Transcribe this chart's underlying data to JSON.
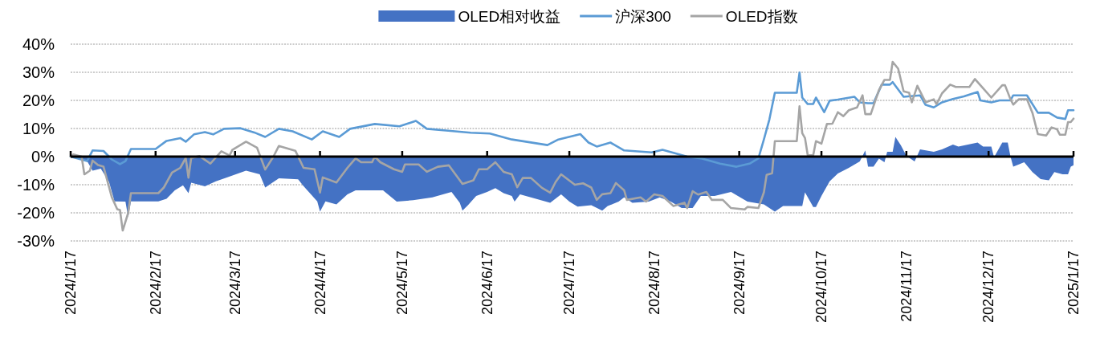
{
  "chart_data": {
    "type": "line",
    "xlim": [
      "2024-01-17",
      "2025-01-17"
    ],
    "xticks": [
      {
        "value": "2024-01-17",
        "label": "2024/1/17"
      },
      {
        "value": "2024-02-17",
        "label": "2024/2/17"
      },
      {
        "value": "2024-03-17",
        "label": "2024/3/17"
      },
      {
        "value": "2024-04-17",
        "label": "2024/4/17"
      },
      {
        "value": "2024-05-17",
        "label": "2024/5/17"
      },
      {
        "value": "2024-06-17",
        "label": "2024/6/17"
      },
      {
        "value": "2024-07-17",
        "label": "2024/7/17"
      },
      {
        "value": "2024-08-17",
        "label": "2024/8/17"
      },
      {
        "value": "2024-09-17",
        "label": "2024/9/17"
      },
      {
        "value": "2024-10-17",
        "label": "2024/10/17"
      },
      {
        "value": "2024-11-17",
        "label": "2024/11/17"
      },
      {
        "value": "2024-12-17",
        "label": "2024/12/17"
      },
      {
        "value": "2025-01-17",
        "label": "2025/1/17"
      }
    ],
    "ylim": [
      -30,
      40
    ],
    "yticks": [
      {
        "value": -30,
        "label": "-30%"
      },
      {
        "value": -20,
        "label": "-20%"
      },
      {
        "value": -10,
        "label": "-10%"
      },
      {
        "value": 0,
        "label": "0%"
      },
      {
        "value": 10,
        "label": "10%"
      },
      {
        "value": 20,
        "label": "20%"
      },
      {
        "value": 30,
        "label": "30%"
      },
      {
        "value": 40,
        "label": "40%"
      }
    ],
    "grid": "y",
    "legend": "top",
    "series": [
      {
        "name": "OLED相对收益",
        "type": "area",
        "color": "#4472c4",
        "x": [
          "2024-01-17",
          "2024-01-23",
          "2024-01-25",
          "2024-01-28",
          "2024-01-31",
          "2024-02-02",
          "2024-02-06",
          "2024-02-07",
          "2024-02-08",
          "2024-02-18",
          "2024-02-21",
          "2024-02-24",
          "2024-02-27",
          "2024-02-29",
          "2024-03-01",
          "2024-03-06",
          "2024-03-10",
          "2024-03-14",
          "2024-03-21",
          "2024-03-26",
          "2024-03-28",
          "2024-04-02",
          "2024-04-09",
          "2024-04-11",
          "2024-04-16",
          "2024-04-17",
          "2024-04-19",
          "2024-04-23",
          "2024-04-27",
          "2024-04-30",
          "2024-05-10",
          "2024-05-15",
          "2024-05-21",
          "2024-05-28",
          "2024-06-04",
          "2024-06-07",
          "2024-06-08",
          "2024-06-10",
          "2024-06-13",
          "2024-06-17",
          "2024-06-20",
          "2024-06-23",
          "2024-06-26",
          "2024-06-27",
          "2024-06-29",
          "2024-07-04",
          "2024-07-10",
          "2024-07-14",
          "2024-07-17",
          "2024-07-20",
          "2024-07-25",
          "2024-07-29",
          "2024-07-31",
          "2024-08-04",
          "2024-08-06",
          "2024-08-09",
          "2024-08-15",
          "2024-08-19",
          "2024-08-23",
          "2024-08-27",
          "2024-08-31",
          "2024-09-03",
          "2024-09-08",
          "2024-09-14",
          "2024-09-20",
          "2024-09-26",
          "2024-09-30",
          "2024-10-03",
          "2024-10-10",
          "2024-10-11",
          "2024-10-14",
          "2024-10-15",
          "2024-10-17",
          "2024-10-20",
          "2024-10-23",
          "2024-10-27",
          "2024-10-31",
          "2024-11-02",
          "2024-11-03",
          "2024-11-05",
          "2024-11-07",
          "2024-11-09",
          "2024-11-10",
          "2024-11-12",
          "2024-11-13",
          "2024-11-15",
          "2024-11-17",
          "2024-11-20",
          "2024-11-22",
          "2024-11-27",
          "2024-11-30",
          "2024-12-04",
          "2024-12-06",
          "2024-12-13",
          "2024-12-15",
          "2024-12-18",
          "2024-12-19",
          "2024-12-22",
          "2024-12-24",
          "2024-12-25",
          "2024-12-26",
          "2024-12-30",
          "2025-01-02",
          "2025-01-05",
          "2025-01-08",
          "2025-01-10",
          "2025-01-13",
          "2025-01-15",
          "2025-01-16",
          "2025-01-17"
        ],
        "values": [
          0,
          -1.6,
          -5,
          -4.3,
          -9,
          -15.9,
          -16,
          -21.6,
          -15.9,
          -15.9,
          -15,
          -12,
          -10.2,
          -13,
          -9.3,
          -10.6,
          -8.8,
          -7.4,
          -5,
          -6.3,
          -11,
          -7.7,
          -8.1,
          -10.5,
          -15.9,
          -19.6,
          -15.9,
          -17,
          -13.4,
          -12,
          -12,
          -16,
          -15.5,
          -14.5,
          -12.6,
          -16.4,
          -19.2,
          -17.3,
          -14,
          -12.6,
          -11.2,
          -13,
          -14,
          -16,
          -13.4,
          -14.8,
          -16.4,
          -13.4,
          -16,
          -17.8,
          -17.3,
          -19.2,
          -17.6,
          -16,
          -14.5,
          -16.4,
          -16,
          -14.5,
          -16,
          -18.3,
          -18.3,
          -14,
          -14,
          -12.6,
          -16,
          -17,
          -19.6,
          -17.6,
          -17.6,
          -12.7,
          -17.9,
          -17.9,
          -14,
          -8.8,
          -6,
          -4,
          -1.7,
          2.2,
          -3.6,
          -3.6,
          -0.7,
          -2,
          1.7,
          1.7,
          7,
          4,
          0.3,
          -1.7,
          2.6,
          1.7,
          2.6,
          4.3,
          3.6,
          5,
          3.6,
          3.6,
          -0.2,
          5,
          5,
          0,
          -3.6,
          -2,
          -5.5,
          -8,
          -8.4,
          -5.5,
          -6.3,
          -6.3,
          -3.6,
          -3.1
        ]
      },
      {
        "name": "沪深300",
        "color": "#5b9bd5",
        "x": [
          "2024-01-17",
          "2024-01-23",
          "2024-01-25",
          "2024-01-29",
          "2024-02-01",
          "2024-02-04",
          "2024-02-06",
          "2024-02-08",
          "2024-02-17",
          "2024-02-21",
          "2024-02-26",
          "2024-02-28",
          "2024-03-02",
          "2024-03-06",
          "2024-03-09",
          "2024-03-13",
          "2024-03-19",
          "2024-03-24",
          "2024-03-28",
          "2024-04-02",
          "2024-04-07",
          "2024-04-14",
          "2024-04-18",
          "2024-04-24",
          "2024-04-28",
          "2024-05-07",
          "2024-05-16",
          "2024-05-22",
          "2024-05-26",
          "2024-06-02",
          "2024-06-11",
          "2024-06-18",
          "2024-06-26",
          "2024-07-09",
          "2024-07-13",
          "2024-07-21",
          "2024-07-24",
          "2024-07-27",
          "2024-08-01",
          "2024-08-06",
          "2024-08-16",
          "2024-08-20",
          "2024-08-29",
          "2024-09-03",
          "2024-09-10",
          "2024-09-16",
          "2024-09-21",
          "2024-09-24",
          "2024-09-26",
          "2024-09-28",
          "2024-09-30",
          "2024-10-08",
          "2024-10-09",
          "2024-10-10",
          "2024-10-12",
          "2024-10-14",
          "2024-10-15",
          "2024-10-18",
          "2024-10-20",
          "2024-10-23",
          "2024-10-29",
          "2024-10-31",
          "2024-11-03",
          "2024-11-05",
          "2024-11-08",
          "2024-11-11",
          "2024-11-12",
          "2024-11-16",
          "2024-11-22",
          "2024-11-24",
          "2024-11-27",
          "2024-11-30",
          "2024-12-04",
          "2024-12-08",
          "2024-12-13",
          "2024-12-14",
          "2024-12-18",
          "2024-12-21",
          "2024-12-25",
          "2024-12-26",
          "2024-12-31",
          "2025-01-04",
          "2025-01-08",
          "2025-01-11",
          "2025-01-14",
          "2025-01-15",
          "2025-01-17"
        ],
        "values": [
          0,
          -1.6,
          2.2,
          2,
          -1,
          -2.7,
          -1.6,
          2.7,
          2.7,
          5.6,
          6.6,
          5.3,
          7.9,
          8.7,
          7.9,
          9.9,
          10.1,
          8.6,
          7,
          9.9,
          9,
          6.1,
          9,
          7,
          9.9,
          11.6,
          10.8,
          12.7,
          9.9,
          9.3,
          8.5,
          8.2,
          6.1,
          4.1,
          6.1,
          8,
          5,
          3.6,
          5,
          2.2,
          1.5,
          2.4,
          0,
          -0.6,
          -2.5,
          -3.6,
          -2.4,
          -0.6,
          6.1,
          13.2,
          22.7,
          22.7,
          29.9,
          21,
          18.7,
          18.7,
          21,
          15.8,
          19.9,
          20.3,
          21.3,
          19.3,
          19,
          19,
          25.6,
          25.6,
          26.5,
          21.3,
          21.8,
          18.4,
          17.5,
          19.3,
          20.5,
          21.4,
          23,
          20,
          19.3,
          20,
          20,
          21.8,
          21.8,
          15.6,
          15.6,
          13.9,
          13.4,
          16.5,
          16.5
        ]
      },
      {
        "name": "OLED指数",
        "color": "#a5a5a5",
        "x": [
          "2024-01-17",
          "2024-01-18",
          "2024-01-21",
          "2024-01-22",
          "2024-01-24",
          "2024-01-25",
          "2024-01-27",
          "2024-01-29",
          "2024-02-01",
          "2024-02-03",
          "2024-02-04",
          "2024-02-05",
          "2024-02-07",
          "2024-02-08",
          "2024-02-18",
          "2024-02-20",
          "2024-02-23",
          "2024-02-26",
          "2024-02-28",
          "2024-02-29",
          "2024-03-01",
          "2024-03-04",
          "2024-03-08",
          "2024-03-12",
          "2024-03-15",
          "2024-03-16",
          "2024-03-21",
          "2024-03-25",
          "2024-03-28",
          "2024-03-31",
          "2024-04-02",
          "2024-04-08",
          "2024-04-11",
          "2024-04-15",
          "2024-04-17",
          "2024-04-18",
          "2024-04-23",
          "2024-04-27",
          "2024-04-30",
          "2024-05-02",
          "2024-05-06",
          "2024-05-07",
          "2024-05-09",
          "2024-05-14",
          "2024-05-17",
          "2024-05-18",
          "2024-05-23",
          "2024-05-26",
          "2024-05-30",
          "2024-06-03",
          "2024-06-08",
          "2024-06-12",
          "2024-06-14",
          "2024-06-17",
          "2024-06-20",
          "2024-06-23",
          "2024-06-26",
          "2024-06-28",
          "2024-06-30",
          "2024-07-03",
          "2024-07-07",
          "2024-07-10",
          "2024-07-12",
          "2024-07-14",
          "2024-07-19",
          "2024-07-22",
          "2024-07-25",
          "2024-07-27",
          "2024-07-29",
          "2024-08-01",
          "2024-08-03",
          "2024-08-06",
          "2024-08-07",
          "2024-08-12",
          "2024-08-14",
          "2024-08-17",
          "2024-08-20",
          "2024-08-24",
          "2024-08-28",
          "2024-08-29",
          "2024-08-31",
          "2024-09-02",
          "2024-09-05",
          "2024-09-07",
          "2024-09-11",
          "2024-09-14",
          "2024-09-19",
          "2024-09-20",
          "2024-09-24",
          "2024-09-26",
          "2024-09-27",
          "2024-09-29",
          "2024-09-30",
          "2024-10-08",
          "2024-10-09",
          "2024-10-10",
          "2024-10-11",
          "2024-10-12",
          "2024-10-14",
          "2024-10-15",
          "2024-10-17",
          "2024-10-19",
          "2024-10-21",
          "2024-10-23",
          "2024-10-25",
          "2024-10-27",
          "2024-10-30",
          "2024-11-01",
          "2024-11-02",
          "2024-11-04",
          "2024-11-07",
          "2024-11-09",
          "2024-11-11",
          "2024-11-12",
          "2024-11-14",
          "2024-11-16",
          "2024-11-18",
          "2024-11-19",
          "2024-11-21",
          "2024-11-24",
          "2024-11-27",
          "2024-11-28",
          "2024-11-30",
          "2024-12-03",
          "2024-12-05",
          "2024-12-10",
          "2024-12-12",
          "2024-12-15",
          "2024-12-18",
          "2024-12-22",
          "2024-12-23",
          "2024-12-25",
          "2024-12-26",
          "2024-12-28",
          "2024-12-31",
          "2025-01-02",
          "2025-01-04",
          "2025-01-07",
          "2025-01-09",
          "2025-01-11",
          "2025-01-12",
          "2025-01-14",
          "2025-01-15",
          "2025-01-16",
          "2025-01-17"
        ],
        "values": [
          0,
          0.8,
          0,
          -6.3,
          -5,
          -1.4,
          -3,
          -3.6,
          -14.4,
          -18.7,
          -19,
          -26.3,
          -20,
          -13,
          -13,
          -11,
          -5.7,
          -4,
          -0.5,
          -7.5,
          -0.5,
          0.2,
          -2.5,
          1.9,
          0.4,
          2.4,
          5.3,
          3.2,
          -4.6,
          0,
          3.8,
          2.1,
          -4,
          -4.5,
          -12.8,
          -7.4,
          -9.2,
          -4,
          -0.6,
          -2,
          -2,
          0,
          -2,
          -4.5,
          -5.4,
          -2.8,
          -2.8,
          -5.4,
          -3.6,
          -3.1,
          -9.7,
          -8.4,
          -4.5,
          -4.5,
          -2,
          -5.4,
          -6.3,
          -10.9,
          -7.6,
          -7.6,
          -11.1,
          -12.8,
          -9,
          -6.3,
          -10,
          -9.5,
          -11,
          -15.4,
          -13.4,
          -13,
          -9.4,
          -12,
          -15.4,
          -14.5,
          -16,
          -13.4,
          -14,
          -17.6,
          -16.4,
          -18.3,
          -12.3,
          -13.5,
          -12.6,
          -15.4,
          -15.4,
          -18.3,
          -18.8,
          -17.9,
          -18.3,
          -12.7,
          -6.5,
          -5.9,
          5.5,
          5.5,
          17.9,
          8.3,
          6.6,
          0.5,
          0.5,
          5.5,
          4.6,
          11.6,
          11.7,
          15.8,
          14.4,
          16.5,
          17.5,
          21.8,
          15.1,
          15.1,
          23.7,
          27.3,
          27.3,
          33.7,
          31.3,
          23.2,
          22.7,
          19.3,
          25.2,
          19.3,
          20.4,
          18.7,
          22.5,
          25.6,
          24.8,
          24.8,
          27.6,
          24.3,
          21,
          25.4,
          25.4,
          20.4,
          18.5,
          20.4,
          20.4,
          15.6,
          8,
          7.5,
          10.4,
          9.7,
          7.8,
          7.8,
          12.3,
          12.3,
          13.5
        ]
      }
    ]
  }
}
